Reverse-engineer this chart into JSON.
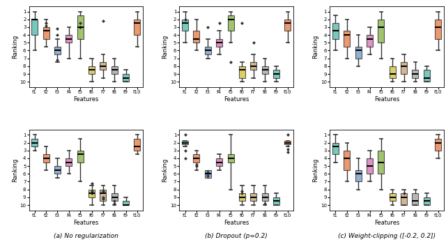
{
  "feature_labels": [
    "f1",
    "f2",
    "f3",
    "f4",
    "f5",
    "f6",
    "f7",
    "f8",
    "f9",
    "f10"
  ],
  "captions": [
    "(a) No regularization",
    "(b) Dropout (p=0.2)",
    "(c) Weight-clipping ([-0.2, 0.2])"
  ],
  "ylabel": "Ranking",
  "xlabel": "Features",
  "colors": {
    "f1": "#5bbcad",
    "f2": "#e8834e",
    "f3": "#7b9ec9",
    "f4": "#d97cb5",
    "f5": "#8db84e",
    "f6": "#d4c44a",
    "f7": "#c9a87c",
    "f8": "#a8a8a8",
    "f9": "#5bbcad",
    "f10": "#e8834e"
  },
  "box_data": {
    "row0_col0": {
      "f1": {
        "q1": 2.0,
        "med": 2.0,
        "q3": 4.0,
        "whislo": 1.0,
        "whishi": 6.0,
        "fliers": []
      },
      "f2": {
        "q1": 3.0,
        "med": 3.5,
        "q3": 4.5,
        "whislo": 2.0,
        "whishi": 5.5,
        "fliers": [
          2.5,
          2.8
        ]
      },
      "f3": {
        "q1": 5.5,
        "med": 6.0,
        "q3": 6.5,
        "whislo": 4.5,
        "whishi": 7.5,
        "fliers": [
          3.2,
          4.0,
          7.2
        ]
      },
      "f4": {
        "q1": 4.0,
        "med": 4.5,
        "q3": 5.0,
        "whislo": 3.0,
        "whishi": 7.0,
        "fliers": []
      },
      "f5": {
        "q1": 1.5,
        "med": 3.0,
        "q3": 4.5,
        "whislo": 1.0,
        "whishi": 7.0,
        "fliers": [
          2.5,
          3.0
        ]
      },
      "f6": {
        "q1": 8.0,
        "med": 8.5,
        "q3": 9.0,
        "whislo": 7.0,
        "whishi": 10.0,
        "fliers": []
      },
      "f7": {
        "q1": 7.5,
        "med": 8.0,
        "q3": 8.5,
        "whislo": 6.5,
        "whishi": 9.5,
        "fliers": [
          2.2
        ]
      },
      "f8": {
        "q1": 8.0,
        "med": 8.5,
        "q3": 9.0,
        "whislo": 7.0,
        "whishi": 10.0,
        "fliers": []
      },
      "f9": {
        "q1": 9.0,
        "med": 9.5,
        "q3": 10.0,
        "whislo": 8.5,
        "whishi": 10.0,
        "fliers": []
      },
      "f10": {
        "q1": 2.0,
        "med": 2.5,
        "q3": 4.0,
        "whislo": 1.0,
        "whishi": 5.5,
        "fliers": []
      }
    },
    "row0_col1": {
      "f1": {
        "q1": 2.0,
        "med": 2.5,
        "q3": 3.5,
        "whislo": 1.0,
        "whishi": 5.0,
        "fliers": [
          2.0
        ]
      },
      "f2": {
        "q1": 3.5,
        "med": 4.5,
        "q3": 5.0,
        "whislo": 2.0,
        "whishi": 6.0,
        "fliers": []
      },
      "f3": {
        "q1": 5.5,
        "med": 6.0,
        "q3": 6.5,
        "whislo": 4.5,
        "whishi": 7.0,
        "fliers": [
          3.0
        ]
      },
      "f4": {
        "q1": 4.5,
        "med": 5.0,
        "q3": 5.5,
        "whislo": 3.5,
        "whishi": 6.5,
        "fliers": [
          2.5
        ]
      },
      "f5": {
        "q1": 1.5,
        "med": 2.0,
        "q3": 3.5,
        "whislo": 1.0,
        "whishi": 5.0,
        "fliers": [
          7.5
        ]
      },
      "f6": {
        "q1": 8.0,
        "med": 8.5,
        "q3": 9.5,
        "whislo": 7.5,
        "whishi": 10.0,
        "fliers": [
          2.5
        ]
      },
      "f7": {
        "q1": 7.5,
        "med": 8.0,
        "q3": 8.5,
        "whislo": 6.5,
        "whishi": 9.5,
        "fliers": [
          5.0
        ]
      },
      "f8": {
        "q1": 8.0,
        "med": 8.5,
        "q3": 9.0,
        "whislo": 7.0,
        "whishi": 10.0,
        "fliers": []
      },
      "f9": {
        "q1": 8.5,
        "med": 9.0,
        "q3": 9.5,
        "whislo": 8.0,
        "whishi": 10.0,
        "fliers": []
      },
      "f10": {
        "q1": 2.0,
        "med": 2.5,
        "q3": 3.5,
        "whislo": 1.0,
        "whishi": 5.0,
        "fliers": []
      }
    },
    "row0_col2": {
      "f1": {
        "q1": 2.5,
        "med": 3.5,
        "q3": 4.5,
        "whislo": 1.5,
        "whishi": 6.0,
        "fliers": []
      },
      "f2": {
        "q1": 3.5,
        "med": 4.0,
        "q3": 5.5,
        "whislo": 2.0,
        "whishi": 7.0,
        "fliers": []
      },
      "f3": {
        "q1": 5.5,
        "med": 6.0,
        "q3": 7.0,
        "whislo": 4.0,
        "whishi": 8.0,
        "fliers": []
      },
      "f4": {
        "q1": 4.0,
        "med": 4.5,
        "q3": 5.5,
        "whislo": 3.0,
        "whishi": 6.5,
        "fliers": []
      },
      "f5": {
        "q1": 2.0,
        "med": 3.0,
        "q3": 5.0,
        "whislo": 1.0,
        "whishi": 7.0,
        "fliers": []
      },
      "f6": {
        "q1": 8.0,
        "med": 9.0,
        "q3": 9.5,
        "whislo": 7.0,
        "whishi": 10.0,
        "fliers": []
      },
      "f7": {
        "q1": 7.5,
        "med": 8.0,
        "q3": 9.0,
        "whislo": 6.5,
        "whishi": 10.0,
        "fliers": []
      },
      "f8": {
        "q1": 8.5,
        "med": 9.0,
        "q3": 9.5,
        "whislo": 7.5,
        "whishi": 10.0,
        "fliers": []
      },
      "f9": {
        "q1": 8.5,
        "med": 9.5,
        "q3": 10.0,
        "whislo": 8.0,
        "whishi": 10.0,
        "fliers": []
      },
      "f10": {
        "q1": 2.0,
        "med": 3.0,
        "q3": 4.5,
        "whislo": 1.0,
        "whishi": 6.0,
        "fliers": []
      }
    },
    "row1_col0": {
      "f1": {
        "q1": 1.5,
        "med": 2.0,
        "q3": 2.5,
        "whislo": 1.0,
        "whishi": 3.0,
        "fliers": []
      },
      "f2": {
        "q1": 3.5,
        "med": 4.0,
        "q3": 4.5,
        "whislo": 2.5,
        "whishi": 5.5,
        "fliers": []
      },
      "f3": {
        "q1": 5.0,
        "med": 5.5,
        "q3": 6.0,
        "whislo": 4.0,
        "whishi": 6.5,
        "fliers": []
      },
      "f4": {
        "q1": 4.0,
        "med": 4.5,
        "q3": 5.0,
        "whislo": 3.0,
        "whishi": 6.0,
        "fliers": []
      },
      "f5": {
        "q1": 3.0,
        "med": 3.5,
        "q3": 4.5,
        "whislo": 1.5,
        "whishi": 7.0,
        "fliers": []
      },
      "f6": {
        "q1": 8.0,
        "med": 8.5,
        "q3": 9.0,
        "whislo": 7.5,
        "whishi": 10.0,
        "fliers": [
          7.2,
          8.2,
          8.5
        ]
      },
      "f7": {
        "q1": 8.0,
        "med": 8.5,
        "q3": 9.5,
        "whislo": 7.5,
        "whishi": 10.0,
        "fliers": [
          8.2,
          9.0,
          9.2
        ]
      },
      "f8": {
        "q1": 8.5,
        "med": 9.0,
        "q3": 9.5,
        "whislo": 7.5,
        "whishi": 10.0,
        "fliers": [
          9.5,
          9.8
        ]
      },
      "f9": {
        "q1": 9.5,
        "med": 10.0,
        "q3": 10.0,
        "whislo": 9.0,
        "whishi": 10.0,
        "fliers": []
      },
      "f10": {
        "q1": 1.5,
        "med": 2.5,
        "q3": 3.0,
        "whislo": 1.0,
        "whishi": 3.5,
        "fliers": []
      }
    },
    "row1_col1": {
      "f1": {
        "q1": 1.8,
        "med": 2.0,
        "q3": 2.2,
        "whislo": 1.8,
        "whishi": 2.5,
        "fliers": [
          1.0,
          3.0,
          4.0
        ]
      },
      "f2": {
        "q1": 3.5,
        "med": 4.0,
        "q3": 4.5,
        "whislo": 3.0,
        "whishi": 5.5,
        "fliers": [
          4.8,
          5.0
        ]
      },
      "f3": {
        "q1": 5.5,
        "med": 6.0,
        "q3": 6.5,
        "whislo": 6.0,
        "whishi": 6.0,
        "fliers": [
          5.8,
          6.2
        ]
      },
      "f4": {
        "q1": 4.0,
        "med": 4.5,
        "q3": 5.0,
        "whislo": 3.5,
        "whishi": 5.5,
        "fliers": []
      },
      "f5": {
        "q1": 3.5,
        "med": 4.0,
        "q3": 4.5,
        "whislo": 1.0,
        "whishi": 8.0,
        "fliers": []
      },
      "f6": {
        "q1": 8.5,
        "med": 9.0,
        "q3": 9.5,
        "whislo": 7.5,
        "whishi": 10.0,
        "fliers": [
          8.2,
          8.5
        ]
      },
      "f7": {
        "q1": 8.5,
        "med": 9.0,
        "q3": 9.5,
        "whislo": 7.5,
        "whishi": 10.0,
        "fliers": []
      },
      "f8": {
        "q1": 8.5,
        "med": 9.0,
        "q3": 9.5,
        "whislo": 7.5,
        "whishi": 10.0,
        "fliers": [
          9.8
        ]
      },
      "f9": {
        "q1": 9.0,
        "med": 9.5,
        "q3": 10.0,
        "whislo": 8.5,
        "whishi": 10.0,
        "fliers": []
      },
      "f10": {
        "q1": 1.8,
        "med": 2.0,
        "q3": 2.2,
        "whislo": 1.8,
        "whishi": 2.5,
        "fliers": [
          1.0,
          2.8,
          3.2
        ]
      }
    },
    "row1_col2": {
      "f1": {
        "q1": 2.0,
        "med": 2.5,
        "q3": 3.5,
        "whislo": 1.0,
        "whishi": 4.5,
        "fliers": []
      },
      "f2": {
        "q1": 3.0,
        "med": 4.0,
        "q3": 5.5,
        "whislo": 2.0,
        "whishi": 7.0,
        "fliers": []
      },
      "f3": {
        "q1": 5.5,
        "med": 6.0,
        "q3": 7.0,
        "whislo": 4.0,
        "whishi": 8.0,
        "fliers": []
      },
      "f4": {
        "q1": 4.0,
        "med": 5.0,
        "q3": 6.0,
        "whislo": 3.0,
        "whishi": 7.0,
        "fliers": []
      },
      "f5": {
        "q1": 3.0,
        "med": 4.5,
        "q3": 6.0,
        "whislo": 1.5,
        "whishi": 8.0,
        "fliers": []
      },
      "f6": {
        "q1": 8.5,
        "med": 9.0,
        "q3": 9.5,
        "whislo": 8.0,
        "whishi": 10.0,
        "fliers": []
      },
      "f7": {
        "q1": 8.5,
        "med": 9.0,
        "q3": 10.0,
        "whislo": 8.0,
        "whishi": 10.0,
        "fliers": [
          8.5
        ]
      },
      "f8": {
        "q1": 8.5,
        "med": 9.5,
        "q3": 10.0,
        "whislo": 8.0,
        "whishi": 10.0,
        "fliers": []
      },
      "f9": {
        "q1": 9.0,
        "med": 9.5,
        "q3": 10.0,
        "whislo": 8.5,
        "whishi": 10.0,
        "fliers": []
      },
      "f10": {
        "q1": 1.5,
        "med": 2.0,
        "q3": 3.0,
        "whislo": 1.0,
        "whishi": 4.0,
        "fliers": []
      }
    }
  }
}
